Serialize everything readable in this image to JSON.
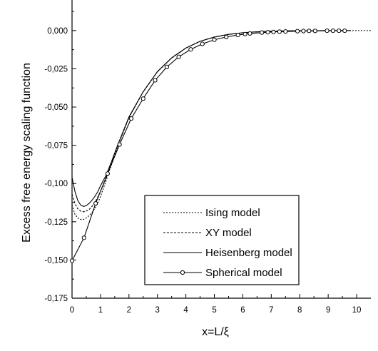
{
  "chart_data": {
    "type": "line",
    "xlabel": "x=L/ξ",
    "ylabel": "Excess free energy scaling function",
    "xlim": [
      0,
      10.5
    ],
    "ylim": [
      -0.175,
      0.02
    ],
    "x_ticks": [
      0,
      1,
      2,
      3,
      4,
      5,
      6,
      7,
      8,
      9,
      10
    ],
    "x_tick_labels": [
      "0",
      "1",
      "2",
      "3",
      "4",
      "5",
      "6",
      "7",
      "8",
      "9",
      "10"
    ],
    "y_ticks": [
      0.0,
      -0.025,
      -0.05,
      -0.075,
      -0.1,
      -0.125,
      -0.15,
      -0.175
    ],
    "y_tick_labels": [
      "0,000",
      "-0,025",
      "-0,050",
      "-0,075",
      "-0,100",
      "-0,125",
      "-0,150",
      "-0,175"
    ],
    "legend_position": "lower-right",
    "series": [
      {
        "name": "Ising model",
        "style": "dotted",
        "color": "#000000",
        "x": [
          0.0,
          0.1,
          0.2,
          0.3,
          0.4,
          0.5,
          0.6,
          0.7,
          0.8,
          0.9,
          1.0,
          1.2,
          1.4,
          1.6,
          2.0,
          2.5,
          3.0,
          3.5,
          4.0,
          4.5,
          5.0,
          5.5,
          6.0,
          6.5,
          7.0,
          7.5,
          8.0,
          8.5,
          9.0,
          9.5,
          10.0,
          10.5
        ],
        "y": [
          -0.114,
          -0.12,
          -0.1225,
          -0.1235,
          -0.1235,
          -0.1225,
          -0.121,
          -0.119,
          -0.1165,
          -0.113,
          -0.1085,
          -0.098,
          -0.087,
          -0.076,
          -0.057,
          -0.04,
          -0.027,
          -0.018,
          -0.0115,
          -0.007,
          -0.0043,
          -0.0025,
          -0.0014,
          -0.0008,
          -0.0004,
          -0.0002,
          -0.0001,
          -0.0001,
          0.0,
          0.0,
          0.0,
          0.0
        ]
      },
      {
        "name": "XY model",
        "style": "dashed",
        "color": "#000000",
        "x": [
          0.0,
          0.1,
          0.2,
          0.3,
          0.4,
          0.5,
          0.6,
          0.7,
          0.8,
          0.9,
          1.0,
          1.2,
          1.4,
          1.6,
          2.0,
          2.5,
          3.0,
          3.5,
          4.0,
          4.5,
          5.0,
          5.5,
          6.0,
          6.5,
          7.0,
          7.5,
          8.0,
          8.5,
          9.0,
          9.5,
          9.8
        ],
        "y": [
          -0.107,
          -0.113,
          -0.1165,
          -0.118,
          -0.1185,
          -0.118,
          -0.117,
          -0.115,
          -0.1125,
          -0.109,
          -0.105,
          -0.0965,
          -0.086,
          -0.0755,
          -0.0565,
          -0.04,
          -0.0268,
          -0.0178,
          -0.0114,
          -0.007,
          -0.0042,
          -0.0025,
          -0.0014,
          -0.0008,
          -0.0004,
          -0.0002,
          -0.0001,
          -0.0001,
          0.0,
          0.0,
          0.0
        ]
      },
      {
        "name": "Heisenberg model",
        "style": "solid",
        "color": "#000000",
        "x": [
          0.0,
          0.1,
          0.2,
          0.3,
          0.4,
          0.5,
          0.6,
          0.7,
          0.8,
          0.9,
          1.0,
          1.2,
          1.4,
          1.6,
          2.0,
          2.5,
          3.0,
          3.5,
          4.0,
          4.5,
          5.0,
          5.5,
          6.0,
          6.5,
          7.0,
          7.5,
          8.0,
          8.5,
          9.0,
          9.5,
          9.8
        ],
        "y": [
          -0.096,
          -0.105,
          -0.111,
          -0.114,
          -0.115,
          -0.1145,
          -0.113,
          -0.111,
          -0.1085,
          -0.1055,
          -0.1015,
          -0.0945,
          -0.085,
          -0.075,
          -0.0565,
          -0.04,
          -0.0268,
          -0.0178,
          -0.0114,
          -0.007,
          -0.0042,
          -0.0025,
          -0.0014,
          -0.0008,
          -0.0004,
          -0.0002,
          -0.0001,
          -0.0001,
          0.0,
          0.0,
          0.0
        ]
      },
      {
        "name": "Spherical model",
        "style": "solid-circle-markers",
        "color": "#000000",
        "x": [
          0.0,
          0.42,
          0.83,
          1.25,
          1.67,
          2.08,
          2.5,
          2.92,
          3.33,
          3.75,
          4.17,
          4.58,
          5.0,
          5.42,
          5.83,
          6.08,
          6.25,
          6.67,
          6.88,
          7.08,
          7.29,
          7.5,
          7.92,
          8.13,
          8.33,
          8.54,
          8.96,
          9.17,
          9.38,
          9.58
        ],
        "y": [
          -0.1505,
          -0.1355,
          -0.113,
          -0.0935,
          -0.0745,
          -0.0575,
          -0.0445,
          -0.0325,
          -0.0238,
          -0.0172,
          -0.0123,
          -0.0087,
          -0.006,
          -0.0042,
          -0.0029,
          -0.0023,
          -0.0019,
          -0.0013,
          -0.0011,
          -0.0009,
          -0.0007,
          -0.0006,
          -0.0004,
          -0.0003,
          -0.0002,
          -0.0002,
          -0.0001,
          -0.0001,
          -0.0001,
          -0.0001
        ]
      }
    ]
  }
}
